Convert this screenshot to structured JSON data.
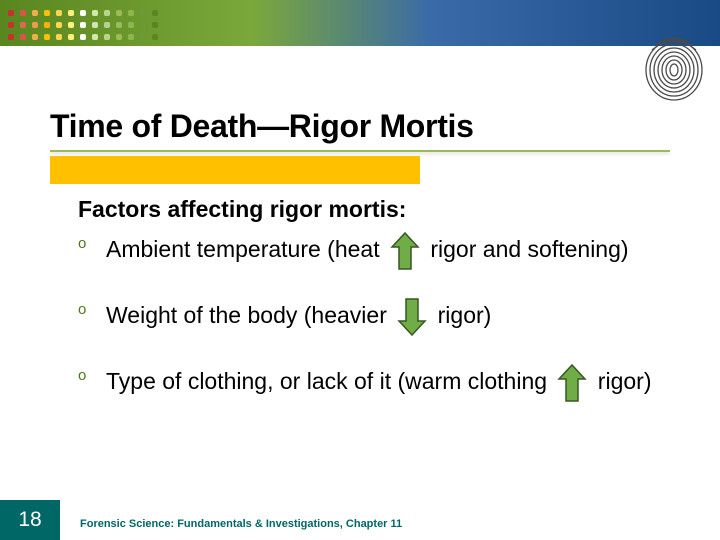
{
  "banner": {
    "gradient_from": "#5a861f",
    "gradient_mid1": "#7ba83a",
    "gradient_mid2": "#3a6aa8",
    "gradient_to": "#1a4a85",
    "dot_colors_r1": [
      "#c9302c",
      "#d9534f",
      "#f0ad4e",
      "#ffc107",
      "#ffd54f",
      "#fff176",
      "#ffffff",
      "#d4e8a8",
      "#b8d68a",
      "#9bbb59",
      "#8db84e",
      "#6a9b3a",
      "#5a861f"
    ],
    "dot_colors_r2": [
      "#c9302c",
      "#d96a4f",
      "#f09a4e",
      "#ffb107",
      "#ffd94f",
      "#fff576",
      "#ffffff",
      "#cfe4b0",
      "#b5d090",
      "#99bb60",
      "#8ab850",
      "#6a9b3a",
      "#5a861f"
    ],
    "dot_colors_r3": [
      "#c9302c",
      "#d9534f",
      "#f0ad4e",
      "#ffc107",
      "#ffd54f",
      "#fff176",
      "#ffffff",
      "#d4e8a8",
      "#b8d68a",
      "#9bbb59",
      "#8db84e",
      "#6a9b3a",
      "#5a861f"
    ]
  },
  "title": "Time of Death—Rigor Mortis",
  "title_accent_color": "#ffc000",
  "title_underline_color": "#9bbb59",
  "factors_heading": "Factors affecting rigor mortis:",
  "bullets": [
    {
      "pre": "Ambient temperature (heat ",
      "arrow": "up",
      "post": " rigor and softening)"
    },
    {
      "pre": "Weight of the body (heavier ",
      "arrow": "down",
      "post": "   rigor)"
    },
    {
      "pre": "Type of clothing, or lack of it (warm clothing ",
      "arrow": "up",
      "post": " rigor)"
    }
  ],
  "arrow_fill": "#70ad47",
  "arrow_stroke": "#385723",
  "page_number": "18",
  "page_number_bg": "#006666",
  "footer": "Forensic Science: Fundamentals & Investigations, Chapter 11",
  "footer_color": "#006666"
}
